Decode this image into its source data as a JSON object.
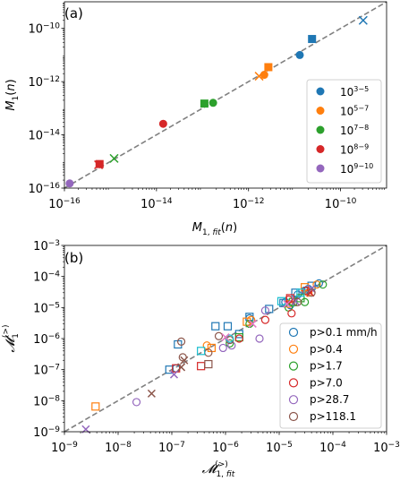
{
  "colors": {
    "blue": "#1f77b4",
    "orange": "#ff7f0e",
    "green": "#2ca02c",
    "red": "#d62728",
    "purple": "#9467bd",
    "brown": "#8c564b",
    "pink": "#e377c2",
    "cyan": "#17becf",
    "identity": "#808080"
  },
  "chart_data": [
    {
      "type": "scatter",
      "panel_label": "(a)",
      "xlabel": "M_{1,fit}(n)",
      "ylabel": "M_1(n)",
      "xscale": "log",
      "yscale": "log",
      "xlim": [
        1e-16,
        1e-09
      ],
      "ylim": [
        1e-16,
        1e-09
      ],
      "xticks": [
        1e-16,
        1e-14,
        1e-12,
        1e-10
      ],
      "xtick_labels": [
        [
          "10",
          "−16"
        ],
        [
          "10",
          "−14"
        ],
        [
          "10",
          "−12"
        ],
        [
          "10",
          "−10"
        ]
      ],
      "yticks": [
        1e-16,
        1e-14,
        1e-12,
        1e-10
      ],
      "ytick_labels": [
        [
          "10",
          "−16"
        ],
        [
          "10",
          "−14"
        ],
        [
          "10",
          "−12"
        ],
        [
          "10",
          "−10"
        ]
      ],
      "identity_line": true,
      "legend_position": "lower-right",
      "series": [
        {
          "name": [
            "10",
            "3−5"
          ],
          "color_key": "blue",
          "points": [
            {
              "x": 1.3e-11,
              "y": 1e-11,
              "marker": "o"
            },
            {
              "x": 2.4e-11,
              "y": 4e-11,
              "marker": "s"
            },
            {
              "x": 3.1e-10,
              "y": 2e-10,
              "marker": "x"
            }
          ]
        },
        {
          "name": [
            "10",
            "5−7"
          ],
          "color_key": "orange",
          "points": [
            {
              "x": 2.2e-12,
              "y": 1.8e-12,
              "marker": "o"
            },
            {
              "x": 2.7e-12,
              "y": 3.5e-12,
              "marker": "s"
            },
            {
              "x": 1.7e-12,
              "y": 1.6e-12,
              "marker": "x"
            }
          ]
        },
        {
          "name": [
            "10",
            "7−8"
          ],
          "color_key": "green",
          "points": [
            {
              "x": 1.7e-13,
              "y": 1.6e-13,
              "marker": "o"
            },
            {
              "x": 1.1e-13,
              "y": 1.5e-13,
              "marker": "s"
            },
            {
              "x": 1.2e-15,
              "y": 1.3e-15,
              "marker": "x"
            }
          ]
        },
        {
          "name": [
            "10",
            "8−9"
          ],
          "color_key": "red",
          "points": [
            {
              "x": 1.4e-14,
              "y": 2.6e-14,
              "marker": "o"
            },
            {
              "x": 5.8e-16,
              "y": 8e-16,
              "marker": "s"
            },
            {
              "x": 5.5e-16,
              "y": 7.5e-16,
              "marker": "x"
            }
          ]
        },
        {
          "name": [
            "10",
            "9−10"
          ],
          "color_key": "purple",
          "points": [
            {
              "x": 1.3e-16,
              "y": 1.5e-16,
              "marker": "o"
            }
          ]
        }
      ]
    },
    {
      "type": "scatter",
      "panel_label": "(b)",
      "xlabel": "𝓜_{1,fit}^{(>)}",
      "ylabel": "𝓜_1^{(>)}",
      "xscale": "log",
      "yscale": "log",
      "xlim": [
        1e-09,
        0.001
      ],
      "ylim": [
        1e-09,
        0.001
      ],
      "xticks": [
        1e-09,
        1e-08,
        1e-07,
        1e-06,
        1e-05,
        0.0001,
        0.001
      ],
      "xtick_labels": [
        [
          "10",
          "−9"
        ],
        [
          "10",
          "−8"
        ],
        [
          "10",
          "−7"
        ],
        [
          "10",
          "−6"
        ],
        [
          "10",
          "−5"
        ],
        [
          "10",
          "−4"
        ],
        [
          "10",
          "−3"
        ]
      ],
      "yticks": [
        1e-09,
        1e-08,
        1e-07,
        1e-06,
        1e-05,
        0.0001,
        0.001
      ],
      "ytick_labels": [
        [
          "10",
          "−9"
        ],
        [
          "10",
          "−8"
        ],
        [
          "10",
          "−7"
        ],
        [
          "10",
          "−6"
        ],
        [
          "10",
          "−5"
        ],
        [
          "10",
          "−4"
        ],
        [
          "10",
          "−3"
        ]
      ],
      "identity_line": true,
      "legend_position": "lower-right",
      "series": [
        {
          "name": "p>0.1 mm/h",
          "color_key": "blue",
          "points": [
            {
              "x": 1.2e-07,
              "y": 1.1e-07,
              "marker": "o"
            },
            {
              "x": 2.8e-06,
              "y": 4.5e-06,
              "marker": "o"
            },
            {
              "x": 1.3e-05,
              "y": 1.5e-05,
              "marker": "o"
            },
            {
              "x": 3.5e-05,
              "y": 4e-05,
              "marker": "o"
            },
            {
              "x": 5.5e-05,
              "y": 6e-05,
              "marker": "o"
            },
            {
              "x": 2.2e-05,
              "y": 2.6e-05,
              "marker": "o"
            },
            {
              "x": 1.6e-05,
              "y": 1.2e-05,
              "marker": "o"
            },
            {
              "x": 3e-05,
              "y": 3.5e-05,
              "marker": "o"
            },
            {
              "x": 9e-08,
              "y": 1e-07,
              "marker": "s"
            },
            {
              "x": 1.3e-07,
              "y": 6.5e-07,
              "marker": "s"
            },
            {
              "x": 6.5e-07,
              "y": 2.5e-06,
              "marker": "s"
            },
            {
              "x": 1.1e-06,
              "y": 2.5e-06,
              "marker": "s"
            },
            {
              "x": 1.8e-06,
              "y": 1.4e-06,
              "marker": "s"
            },
            {
              "x": 2.8e-06,
              "y": 5e-06,
              "marker": "s"
            },
            {
              "x": 6.5e-06,
              "y": 9e-06,
              "marker": "s"
            },
            {
              "x": 1.2e-05,
              "y": 1.4e-05,
              "marker": "s"
            },
            {
              "x": 2e-05,
              "y": 3e-05,
              "marker": "s"
            },
            {
              "x": 4e-05,
              "y": 5e-05,
              "marker": "s"
            }
          ]
        },
        {
          "name": "p>0.4",
          "color_key": "orange",
          "points": [
            {
              "x": 4.5e-07,
              "y": 6e-07,
              "marker": "o"
            },
            {
              "x": 3e-06,
              "y": 4e-06,
              "marker": "o"
            },
            {
              "x": 1.5e-05,
              "y": 1.3e-05,
              "marker": "o"
            },
            {
              "x": 3.5e-05,
              "y": 3e-05,
              "marker": "o"
            },
            {
              "x": 5e-05,
              "y": 5.5e-05,
              "marker": "o"
            },
            {
              "x": 3.8e-09,
              "y": 6.5e-09,
              "marker": "s"
            },
            {
              "x": 5.5e-07,
              "y": 5e-07,
              "marker": "s"
            },
            {
              "x": 2.5e-06,
              "y": 3.5e-06,
              "marker": "s"
            },
            {
              "x": 3e-05,
              "y": 4.5e-05,
              "marker": "s"
            }
          ]
        },
        {
          "name": "p>1.7",
          "color_key": "green",
          "points": [
            {
              "x": 1.2e-06,
              "y": 7e-07,
              "marker": "o"
            },
            {
              "x": 2.8e-06,
              "y": 3e-06,
              "marker": "o"
            },
            {
              "x": 1.5e-05,
              "y": 1e-05,
              "marker": "o"
            },
            {
              "x": 3e-05,
              "y": 1.5e-05,
              "marker": "o"
            },
            {
              "x": 6.5e-05,
              "y": 5.5e-05,
              "marker": "o"
            },
            {
              "x": 1.8e-06,
              "y": 1.1e-06,
              "marker": "s"
            },
            {
              "x": 1.8e-05,
              "y": 1.5e-05,
              "marker": "s"
            },
            {
              "x": 2.5e-05,
              "y": 2e-05,
              "marker": "s"
            }
          ]
        },
        {
          "name": "p>7.0",
          "color_key": "red",
          "points": [
            {
              "x": 1.8e-06,
              "y": 1e-06,
              "marker": "o"
            },
            {
              "x": 5.5e-06,
              "y": 4e-06,
              "marker": "o"
            },
            {
              "x": 1.7e-05,
              "y": 6.5e-06,
              "marker": "o"
            },
            {
              "x": 3.2e-05,
              "y": 3.5e-05,
              "marker": "o"
            },
            {
              "x": 1.5e-05,
              "y": 1.8e-05,
              "marker": "o"
            },
            {
              "x": 3.5e-07,
              "y": 1.3e-07,
              "marker": "s"
            },
            {
              "x": 1.2e-07,
              "y": 1.1e-07,
              "marker": "s"
            },
            {
              "x": 1.6e-05,
              "y": 2e-05,
              "marker": "s"
            },
            {
              "x": 3.8e-05,
              "y": 3e-05,
              "marker": "x"
            }
          ]
        },
        {
          "name": "p>28.7",
          "color_key": "purple",
          "points": [
            {
              "x": 2.2e-08,
              "y": 9e-09,
              "marker": "o"
            },
            {
              "x": 9e-07,
              "y": 5e-07,
              "marker": "o"
            },
            {
              "x": 4.3e-06,
              "y": 1e-06,
              "marker": "o"
            },
            {
              "x": 5.5e-06,
              "y": 8e-06,
              "marker": "o"
            },
            {
              "x": 1.3e-06,
              "y": 6e-07,
              "marker": "o"
            },
            {
              "x": 1.1e-07,
              "y": 7e-08,
              "marker": "x"
            },
            {
              "x": 2.5e-09,
              "y": 1.2e-09,
              "marker": "x"
            },
            {
              "x": 4e-05,
              "y": 4e-05,
              "marker": "x"
            },
            {
              "x": 2e-05,
              "y": 1.6e-05,
              "marker": "x"
            }
          ]
        },
        {
          "name": "p>118.1",
          "color_key": "brown",
          "points": [
            {
              "x": 1.5e-07,
              "y": 8e-07,
              "marker": "o"
            },
            {
              "x": 1.6e-07,
              "y": 2.5e-07,
              "marker": "o"
            },
            {
              "x": 4.8e-07,
              "y": 3.5e-07,
              "marker": "o"
            },
            {
              "x": 7.5e-07,
              "y": 1.2e-06,
              "marker": "o"
            },
            {
              "x": 1.2e-06,
              "y": 9e-07,
              "marker": "o"
            },
            {
              "x": 2.2e-05,
              "y": 1.5e-05,
              "marker": "o"
            },
            {
              "x": 4e-05,
              "y": 3e-05,
              "marker": "o"
            },
            {
              "x": 4.8e-07,
              "y": 1.5e-07,
              "marker": "s"
            },
            {
              "x": 4.2e-08,
              "y": 1.7e-08,
              "marker": "x"
            },
            {
              "x": 1.7e-07,
              "y": 2e-07,
              "marker": "x"
            },
            {
              "x": 1.5e-07,
              "y": 1.2e-07,
              "marker": "x"
            }
          ]
        },
        {
          "color_key": "cyan",
          "points": [
            {
              "x": 3.5e-07,
              "y": 4e-07,
              "marker": "s"
            },
            {
              "x": 1.2e-06,
              "y": 1e-06,
              "marker": "o"
            },
            {
              "x": 1.1e-05,
              "y": 1.6e-05,
              "marker": "s"
            },
            {
              "x": 2.5e-05,
              "y": 3e-05,
              "marker": "s"
            }
          ]
        },
        {
          "color_key": "pink",
          "points": [
            {
              "x": 1.4e-05,
              "y": 1.3e-05,
              "marker": "x"
            },
            {
              "x": 3.2e-06,
              "y": 3e-06,
              "marker": "x"
            },
            {
              "x": 1e-06,
              "y": 1.1e-06,
              "marker": "x"
            }
          ]
        }
      ]
    }
  ]
}
